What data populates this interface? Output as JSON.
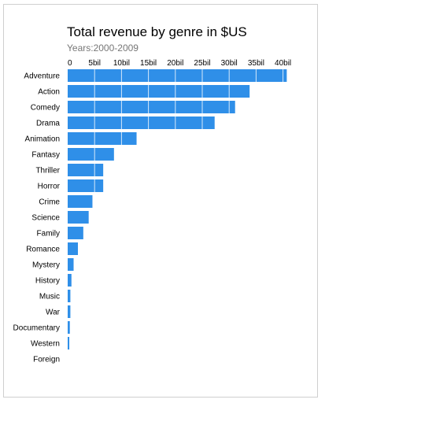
{
  "chart_data": {
    "type": "bar",
    "orientation": "horizontal",
    "title": "Total revenue by genre in $US",
    "subtitle": "Years:2000-2009",
    "xlabel": "",
    "ylabel": "",
    "xlim": [
      0,
      41
    ],
    "xticks": [
      0,
      5,
      10,
      15,
      20,
      25,
      30,
      35,
      40
    ],
    "xtick_labels": [
      "0",
      "5bil",
      "10bil",
      "15bil",
      "20bil",
      "25bil",
      "30bil",
      "35bil",
      "40bil"
    ],
    "tick_position": "top",
    "grid": true,
    "bar_color": "#2f8fe8",
    "categories": [
      "Adventure",
      "Action",
      "Comedy",
      "Drama",
      "Animation",
      "Fantasy",
      "Thriller",
      "Horror",
      "Crime",
      "Science",
      "Family",
      "Romance",
      "Mystery",
      "History",
      "Music",
      "War",
      "Documentary",
      "Western",
      "Foreign"
    ],
    "values": [
      40.7,
      33.8,
      31.1,
      27.3,
      12.8,
      8.6,
      6.6,
      6.6,
      4.6,
      3.9,
      2.9,
      1.9,
      1.1,
      0.7,
      0.5,
      0.5,
      0.4,
      0.3,
      0.0
    ]
  }
}
